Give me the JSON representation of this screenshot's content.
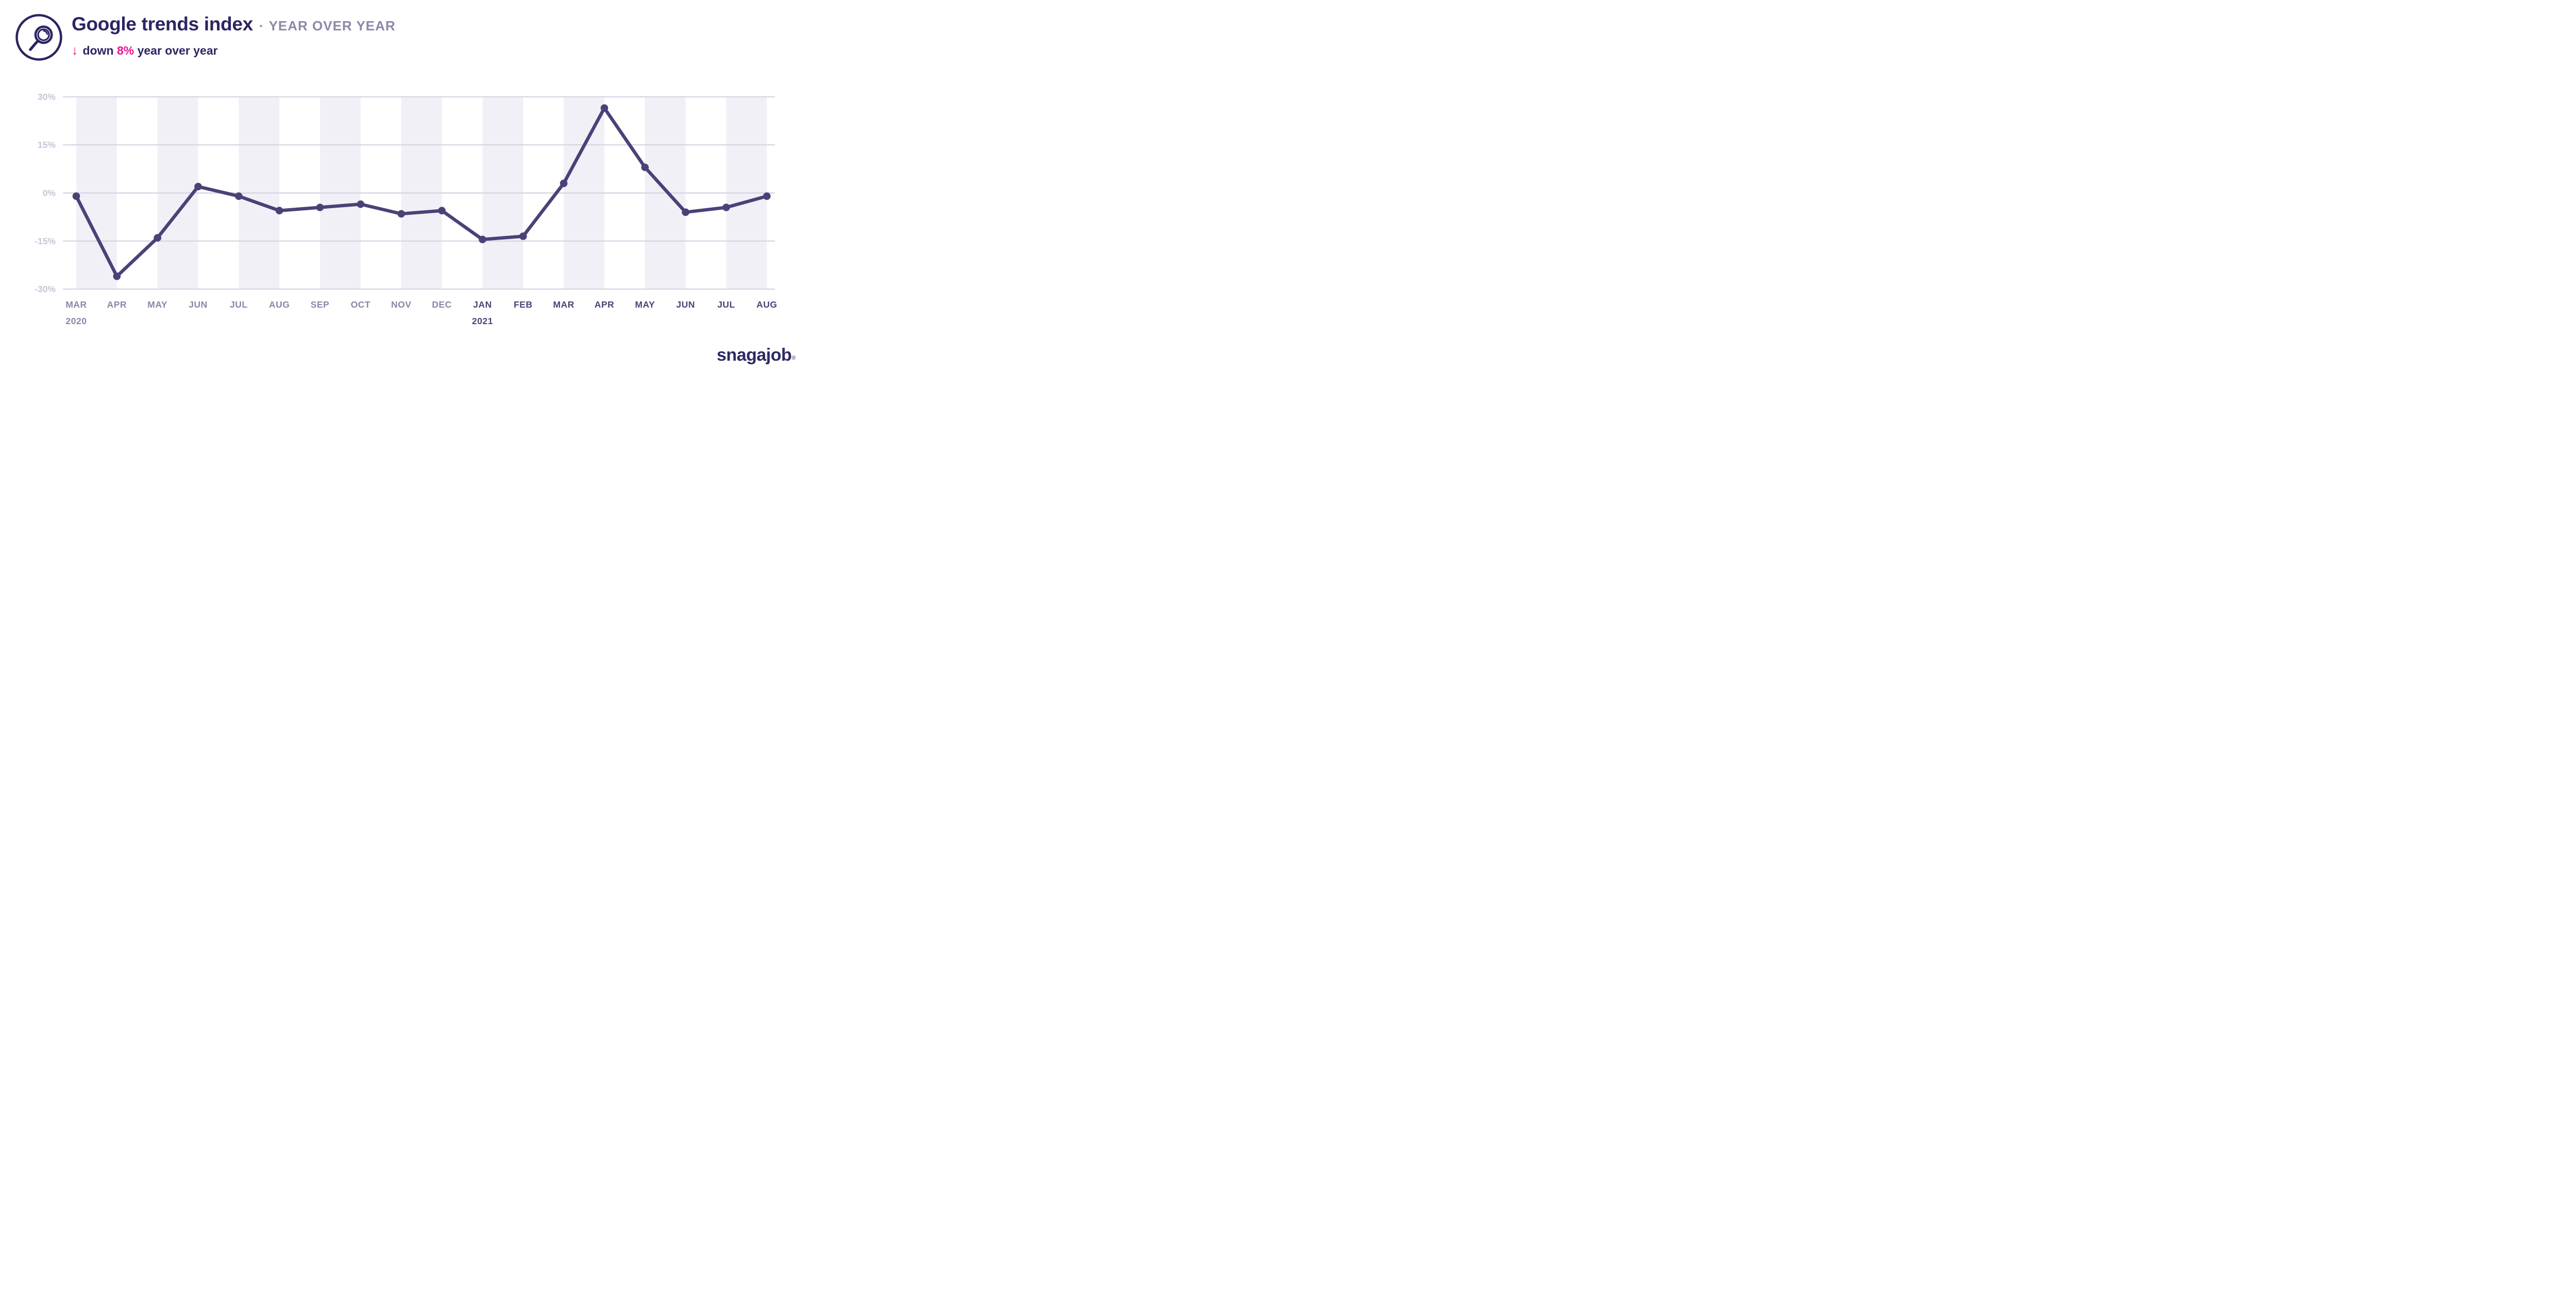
{
  "header": {
    "title": "Google trends index",
    "separator": "·",
    "subtitle_tag": "YEAR OVER YEAR",
    "trend": {
      "arrow": "↓",
      "prefix": "down",
      "highlight": "8%",
      "suffix": "year over year"
    }
  },
  "branding": {
    "logo_text": "snagajob",
    "registered_mark": "®"
  },
  "icons": {
    "header_icon": "magnifier-in-circle-icon"
  },
  "colors": {
    "title_navy": "#2b2563",
    "subtitle_gray": "#8d87a8",
    "accent_pink": "#f0128c",
    "line": "#4a4277",
    "band": "#f1f0f6",
    "gridline": "#d9d6e4",
    "ytick_label": "#c8c4d8",
    "xtick_2020": "#8b85a7",
    "xtick_2021": "#4b4374",
    "logo_navy": "#2d2a64",
    "background": "#ffffff"
  },
  "chart_data": {
    "type": "line",
    "title": "Google trends index",
    "subtitle": "down 8% year over year",
    "xlabel": "",
    "ylabel": "",
    "ylim": [
      -30,
      30
    ],
    "yticks": [
      {
        "value": 30,
        "label": "30%"
      },
      {
        "value": 15,
        "label": "15%"
      },
      {
        "value": 0,
        "label": "0%"
      },
      {
        "value": -15,
        "label": "-15%"
      },
      {
        "value": -30,
        "label": "-30%"
      }
    ],
    "grid": "horizontal",
    "legend": "none",
    "background_bands": "alternating vertical bands spanning each month pair",
    "band_start_indices": [
      0,
      2,
      4,
      6,
      8,
      10,
      12,
      14,
      16
    ],
    "categories": [
      {
        "month": "MAR",
        "year_row": "2020",
        "era": "2020"
      },
      {
        "month": "APR",
        "year_row": "",
        "era": "2020"
      },
      {
        "month": "MAY",
        "year_row": "",
        "era": "2020"
      },
      {
        "month": "JUN",
        "year_row": "",
        "era": "2020"
      },
      {
        "month": "JUL",
        "year_row": "",
        "era": "2020"
      },
      {
        "month": "AUG",
        "year_row": "",
        "era": "2020"
      },
      {
        "month": "SEP",
        "year_row": "",
        "era": "2020"
      },
      {
        "month": "OCT",
        "year_row": "",
        "era": "2020"
      },
      {
        "month": "NOV",
        "year_row": "",
        "era": "2020"
      },
      {
        "month": "DEC",
        "year_row": "",
        "era": "2020"
      },
      {
        "month": "JAN",
        "year_row": "2021",
        "era": "2021"
      },
      {
        "month": "FEB",
        "year_row": "",
        "era": "2021"
      },
      {
        "month": "MAR",
        "year_row": "",
        "era": "2021"
      },
      {
        "month": "APR",
        "year_row": "",
        "era": "2021"
      },
      {
        "month": "MAY",
        "year_row": "",
        "era": "2021"
      },
      {
        "month": "JUN",
        "year_row": "",
        "era": "2021"
      },
      {
        "month": "JUL",
        "year_row": "",
        "era": "2021"
      },
      {
        "month": "AUG",
        "year_row": "",
        "era": "2021"
      }
    ],
    "values": [
      -1,
      -26,
      -14,
      2,
      -1,
      -5.5,
      -4.5,
      -3.5,
      -6.5,
      -5.5,
      -14.5,
      -13.5,
      3,
      26.5,
      8,
      -6,
      -4.5,
      -1
    ],
    "series_name": "Google trends index YoY %"
  }
}
